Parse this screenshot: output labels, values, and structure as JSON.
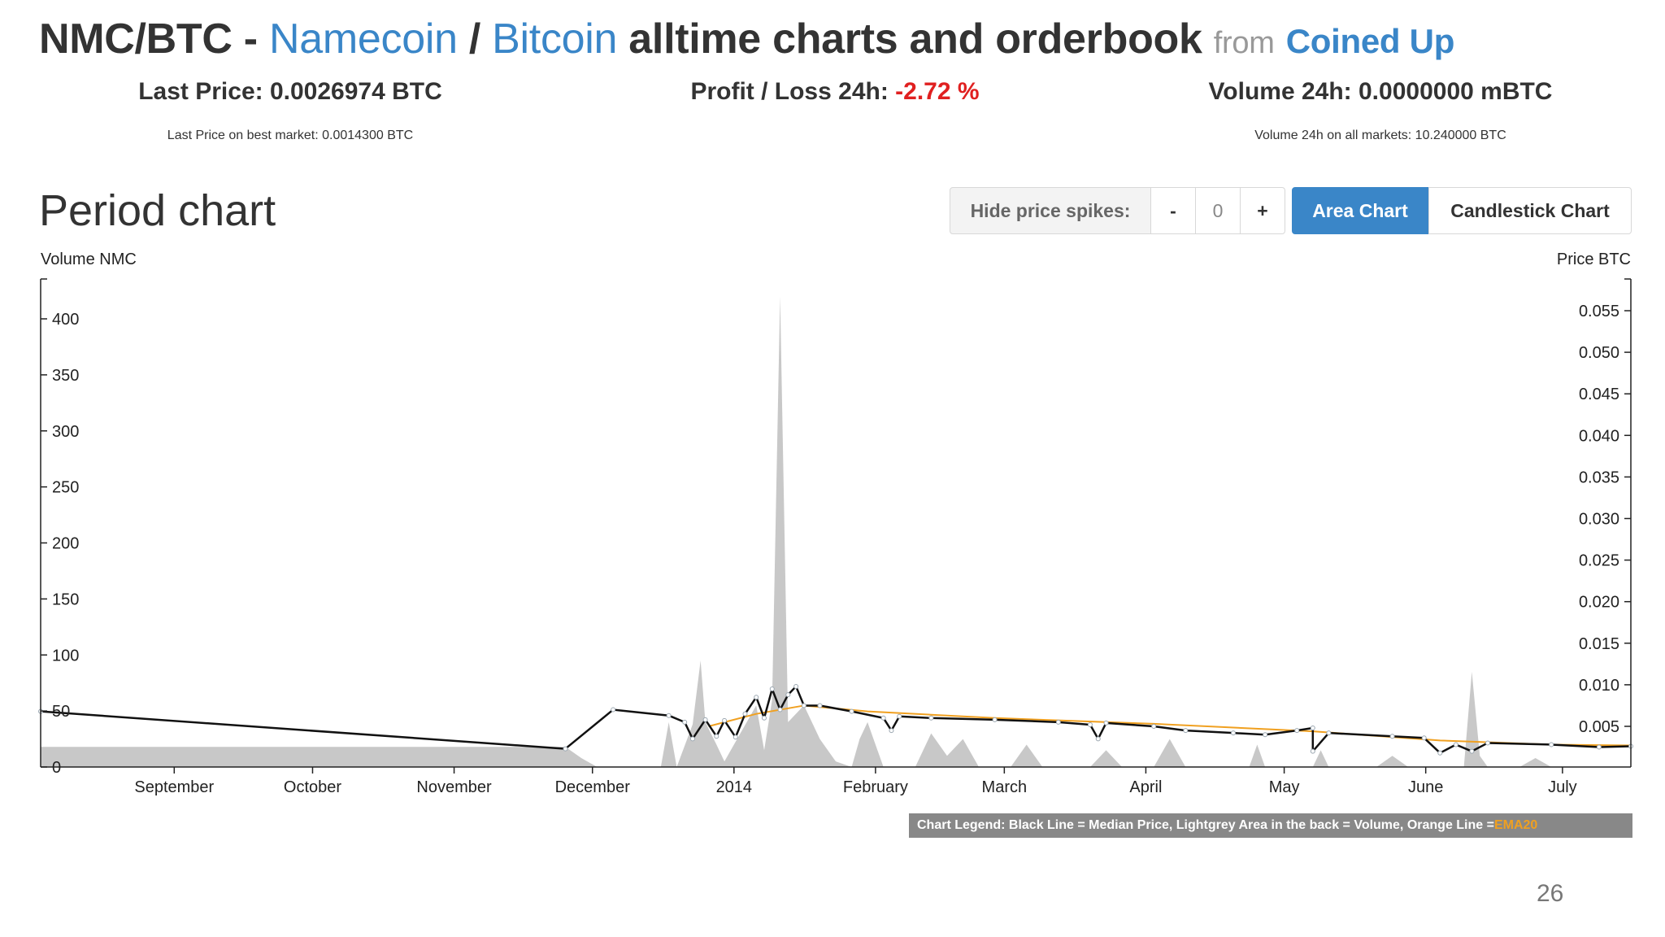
{
  "header": {
    "pair": "NMC/BTC",
    "dash": "-",
    "coin_name": "Namecoin",
    "slash": "/",
    "base_name": "Bitcoin",
    "title_rest": "alltime charts and orderbook",
    "from": "from",
    "brand": "Coined Up"
  },
  "stats": {
    "last_price_label": "Last Price: 0.0026974 BTC",
    "last_price_sub": "Last Price on best market: 0.0014300 BTC",
    "profit_label": "Profit / Loss 24h:",
    "profit_value": "-2.72 %",
    "volume_label": "Volume 24h: 0.0000000 mBTC",
    "volume_sub": "Volume 24h on all markets: 10.240000 BTC"
  },
  "section": {
    "title": "Period chart"
  },
  "controls": {
    "hide_spikes_label": "Hide price spikes:",
    "minus": "-",
    "value": "0",
    "plus": "+",
    "area_chart": "Area Chart",
    "candlestick_chart": "Candlestick Chart"
  },
  "legend": {
    "text": "Chart Legend: Black Line = Median Price, Lightgrey Area in the back = Volume, Orange Line = ",
    "orange_text": "EMA20"
  },
  "page_number": "26",
  "colors": {
    "link": "#3a86c8",
    "negative": "#e02020",
    "volume_area": "#c8c8c8",
    "price_line": "#111111",
    "ema_line": "#f0a020",
    "button_active": "#3a86c8"
  },
  "chart_data": {
    "type": "area",
    "left_axis_label": "Volume NMC",
    "right_axis_label": "Price BTC",
    "left_ticks": [
      0,
      50,
      100,
      150,
      200,
      250,
      300,
      350,
      400
    ],
    "right_ticks": [
      "0.005",
      "0.010",
      "0.015",
      "0.020",
      "0.025",
      "0.030",
      "0.035",
      "0.040",
      "0.045",
      "0.050",
      "0.055"
    ],
    "x_ticks": [
      "September",
      "October",
      "November",
      "December",
      "2014",
      "February",
      "March",
      "April",
      "May",
      "June",
      "July"
    ],
    "x_range": [
      "2013-08",
      "2014-07"
    ],
    "ylim_left": [
      0,
      435
    ],
    "ylim_right": [
      0,
      0.059
    ],
    "series": [
      {
        "name": "Median Price",
        "color": "#111111",
        "points": [
          [
            0.0,
            0.0068
          ],
          [
            0.33,
            0.0023
          ],
          [
            0.36,
            0.007
          ],
          [
            0.395,
            0.0063
          ],
          [
            0.405,
            0.0055
          ],
          [
            0.41,
            0.0035
          ],
          [
            0.418,
            0.0058
          ],
          [
            0.425,
            0.0038
          ],
          [
            0.43,
            0.0057
          ],
          [
            0.437,
            0.0037
          ],
          [
            0.443,
            0.0065
          ],
          [
            0.45,
            0.0085
          ],
          [
            0.455,
            0.006
          ],
          [
            0.46,
            0.0095
          ],
          [
            0.465,
            0.007
          ],
          [
            0.47,
            0.0088
          ],
          [
            0.475,
            0.0098
          ],
          [
            0.48,
            0.0075
          ],
          [
            0.49,
            0.0075
          ],
          [
            0.51,
            0.0068
          ],
          [
            0.53,
            0.006
          ],
          [
            0.535,
            0.0045
          ],
          [
            0.54,
            0.0062
          ],
          [
            0.56,
            0.006
          ],
          [
            0.6,
            0.0058
          ],
          [
            0.64,
            0.0055
          ],
          [
            0.66,
            0.0052
          ],
          [
            0.665,
            0.0035
          ],
          [
            0.67,
            0.0054
          ],
          [
            0.7,
            0.005
          ],
          [
            0.72,
            0.0045
          ],
          [
            0.75,
            0.0042
          ],
          [
            0.77,
            0.004
          ],
          [
            0.79,
            0.0045
          ],
          [
            0.8,
            0.0048
          ],
          [
            0.8,
            0.002
          ],
          [
            0.81,
            0.0042
          ],
          [
            0.85,
            0.0038
          ],
          [
            0.87,
            0.0036
          ],
          [
            0.88,
            0.0018
          ],
          [
            0.89,
            0.0028
          ],
          [
            0.9,
            0.002
          ],
          [
            0.91,
            0.003
          ],
          [
            0.95,
            0.0028
          ],
          [
            0.98,
            0.0025
          ],
          [
            1.0,
            0.0026
          ]
        ]
      },
      {
        "name": "EMA20",
        "color": "#f0a020",
        "points": [
          [
            0.42,
            0.005
          ],
          [
            0.45,
            0.0065
          ],
          [
            0.48,
            0.0075
          ],
          [
            0.52,
            0.0068
          ],
          [
            0.6,
            0.006
          ],
          [
            0.7,
            0.0053
          ],
          [
            0.8,
            0.0044
          ],
          [
            0.88,
            0.0033
          ],
          [
            0.95,
            0.0028
          ],
          [
            1.0,
            0.0027
          ]
        ]
      },
      {
        "name": "Volume",
        "color": "#c8c8c8",
        "points": [
          [
            0.0,
            18
          ],
          [
            0.33,
            18
          ],
          [
            0.34,
            8
          ],
          [
            0.345,
            4
          ],
          [
            0.35,
            0
          ],
          [
            0.39,
            0
          ],
          [
            0.395,
            40
          ],
          [
            0.4,
            0
          ],
          [
            0.4,
            0
          ],
          [
            0.41,
            38
          ],
          [
            0.415,
            95
          ],
          [
            0.418,
            40
          ],
          [
            0.425,
            20
          ],
          [
            0.43,
            5
          ],
          [
            0.44,
            30
          ],
          [
            0.45,
            55
          ],
          [
            0.455,
            15
          ],
          [
            0.46,
            60
          ],
          [
            0.465,
            420
          ],
          [
            0.47,
            40
          ],
          [
            0.48,
            55
          ],
          [
            0.49,
            25
          ],
          [
            0.5,
            5
          ],
          [
            0.51,
            0
          ],
          [
            0.515,
            25
          ],
          [
            0.52,
            40
          ],
          [
            0.525,
            20
          ],
          [
            0.53,
            0
          ],
          [
            0.55,
            0
          ],
          [
            0.56,
            30
          ],
          [
            0.57,
            10
          ],
          [
            0.58,
            25
          ],
          [
            0.59,
            0
          ],
          [
            0.61,
            0
          ],
          [
            0.62,
            20
          ],
          [
            0.63,
            0
          ],
          [
            0.66,
            0
          ],
          [
            0.67,
            15
          ],
          [
            0.68,
            0
          ],
          [
            0.7,
            0
          ],
          [
            0.71,
            25
          ],
          [
            0.72,
            0
          ],
          [
            0.76,
            0
          ],
          [
            0.765,
            20
          ],
          [
            0.77,
            0
          ],
          [
            0.8,
            0
          ],
          [
            0.805,
            15
          ],
          [
            0.81,
            0
          ],
          [
            0.84,
            0
          ],
          [
            0.85,
            10
          ],
          [
            0.86,
            0
          ],
          [
            0.895,
            0
          ],
          [
            0.9,
            85
          ],
          [
            0.905,
            10
          ],
          [
            0.91,
            0
          ],
          [
            0.93,
            0
          ],
          [
            0.94,
            8
          ],
          [
            0.95,
            0
          ],
          [
            1.0,
            0
          ]
        ]
      }
    ]
  }
}
